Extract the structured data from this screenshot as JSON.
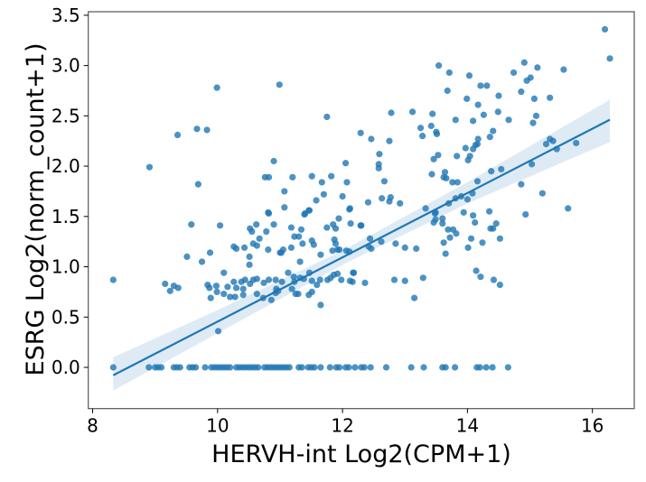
{
  "chart_data": {
    "type": "scatter",
    "xlabel": "HERVH-int Log2(CPM+1)",
    "ylabel": "ESRG Log2(norm_count+1)",
    "xlim": [
      7.93,
      16.67
    ],
    "ylim": [
      -0.41,
      3.535
    ],
    "xticks": [
      8,
      10,
      12,
      14,
      16
    ],
    "yticks": [
      "0.0",
      "0.5",
      "1.0",
      "1.5",
      "2.0",
      "2.5",
      "3.0",
      "3.5"
    ],
    "grid": false,
    "colors": {
      "points": "#1f77b4",
      "line": "#1f77b4",
      "ci_band": "#1f77b4"
    },
    "regression": {
      "x": [
        8.33,
        16.28
      ],
      "intercept": -2.74,
      "slope": 0.3195
    },
    "ci_band": {
      "x": [
        8.33,
        10,
        12,
        14,
        16.28
      ],
      "lower": [
        -0.23,
        0.34,
        1.02,
        1.63,
        2.24
      ],
      "upper": [
        0.1,
        0.57,
        1.16,
        1.84,
        2.66
      ]
    },
    "zero_points_x": [
      8.33,
      8.9,
      9.0,
      9.05,
      9.1,
      9.3,
      9.35,
      9.4,
      9.55,
      9.6,
      9.65,
      9.8,
      9.9,
      9.95,
      10.0,
      10.05,
      10.1,
      10.15,
      10.2,
      10.3,
      10.35,
      10.4,
      10.45,
      10.5,
      10.55,
      10.6,
      10.65,
      10.75,
      10.8,
      10.85,
      10.9,
      10.95,
      11.0,
      11.05,
      11.1,
      11.15,
      11.3,
      11.35,
      11.45,
      11.5,
      11.55,
      11.65,
      11.8,
      11.9,
      11.95,
      12.05,
      12.1,
      12.2,
      12.3,
      12.35,
      12.45,
      12.7,
      13.1,
      13.3,
      13.6,
      13.65,
      13.8,
      14.15,
      14.2,
      14.3,
      14.4,
      14.65
    ],
    "points": [
      [
        8.91,
        1.99
      ],
      [
        9.36,
        2.31
      ],
      [
        9.67,
        2.37
      ],
      [
        9.83,
        2.36
      ],
      [
        9.99,
        2.78
      ],
      [
        10.99,
        2.81
      ],
      [
        11.75,
        2.49
      ],
      [
        9.69,
        1.82
      ],
      [
        10.9,
        2.05
      ],
      [
        10.76,
        1.89
      ],
      [
        10.82,
        1.89
      ],
      [
        11.2,
        1.89
      ],
      [
        11.51,
        1.9
      ],
      [
        11.82,
        1.9
      ],
      [
        12.05,
        2.03
      ],
      [
        11.67,
        1.84
      ],
      [
        12.07,
        1.84
      ],
      [
        11.07,
        1.75
      ],
      [
        11.7,
        1.72
      ],
      [
        11.58,
        1.66
      ],
      [
        12.0,
        1.7
      ],
      [
        11.07,
        1.59
      ],
      [
        12.12,
        1.58
      ],
      [
        10.81,
        1.54
      ],
      [
        11.39,
        1.52
      ],
      [
        11.47,
        1.56
      ],
      [
        12.29,
        2.33
      ],
      [
        16.2,
        3.36
      ],
      [
        16.28,
        3.07
      ],
      [
        13.54,
        3.0
      ],
      [
        13.71,
        2.93
      ],
      [
        14.03,
        2.9
      ],
      [
        14.91,
        3.03
      ],
      [
        15.12,
        2.98
      ],
      [
        15.54,
        2.96
      ],
      [
        14.74,
        2.93
      ],
      [
        14.95,
        2.85
      ],
      [
        15.01,
        2.88
      ],
      [
        14.21,
        2.8
      ],
      [
        14.31,
        2.8
      ],
      [
        13.68,
        2.75
      ],
      [
        14.5,
        2.7
      ],
      [
        13.99,
        2.67
      ],
      [
        14.86,
        2.74
      ],
      [
        15.07,
        2.67
      ],
      [
        15.32,
        2.68
      ],
      [
        14.17,
        2.61
      ],
      [
        12.78,
        2.53
      ],
      [
        13.12,
        2.54
      ],
      [
        13.44,
        2.52
      ],
      [
        14.26,
        2.51
      ],
      [
        14.49,
        2.54
      ],
      [
        13.81,
        2.46
      ],
      [
        14.09,
        2.45
      ],
      [
        14.66,
        2.46
      ],
      [
        15.1,
        2.5
      ],
      [
        15.05,
        2.43
      ],
      [
        12.46,
        2.27
      ],
      [
        12.75,
        2.25
      ],
      [
        13.25,
        2.38
      ],
      [
        13.28,
        2.3
      ],
      [
        13.42,
        2.4
      ],
      [
        13.5,
        2.34
      ],
      [
        13.51,
        2.32
      ],
      [
        14.41,
        2.35
      ],
      [
        14.36,
        2.29
      ],
      [
        14.17,
        2.27
      ],
      [
        14.16,
        2.22
      ],
      [
        13.97,
        2.18
      ],
      [
        14.09,
        2.17
      ],
      [
        14.13,
        2.21
      ],
      [
        15.26,
        2.22
      ],
      [
        15.32,
        2.27
      ],
      [
        15.37,
        2.25
      ],
      [
        15.43,
        2.17
      ],
      [
        15.74,
        2.23
      ],
      [
        12.59,
        2.12
      ],
      [
        12.58,
        2.02
      ],
      [
        12.58,
        1.98
      ],
      [
        13.53,
        2.11
      ],
      [
        13.46,
        2.07
      ],
      [
        13.83,
        2.1
      ],
      [
        14.04,
        2.1
      ],
      [
        14.01,
        2.06
      ],
      [
        15.03,
        2.02
      ],
      [
        12.67,
        1.85
      ],
      [
        13.43,
        1.92
      ],
      [
        13.64,
        1.94
      ],
      [
        13.62,
        1.89
      ],
      [
        13.66,
        1.88
      ],
      [
        13.76,
        1.84
      ],
      [
        13.84,
        1.84
      ],
      [
        14.16,
        1.85
      ],
      [
        14.38,
        1.95
      ],
      [
        14.54,
        1.97
      ],
      [
        14.86,
        1.82
      ],
      [
        15.2,
        1.73
      ],
      [
        15.61,
        1.58
      ],
      [
        12.63,
        1.68
      ],
      [
        12.77,
        1.69
      ],
      [
        12.75,
        1.65
      ],
      [
        12.92,
        1.63
      ],
      [
        12.41,
        1.64
      ],
      [
        13.33,
        1.58
      ],
      [
        13.49,
        1.54
      ],
      [
        13.7,
        1.63
      ],
      [
        13.81,
        1.68
      ],
      [
        13.9,
        1.7
      ],
      [
        14.0,
        1.67
      ],
      [
        14.08,
        1.73
      ],
      [
        13.94,
        1.54
      ],
      [
        14.09,
        1.51
      ],
      [
        14.35,
        1.55
      ],
      [
        14.93,
        1.52
      ],
      [
        12.3,
        1.41
      ],
      [
        12.44,
        1.28
      ],
      [
        12.42,
        1.2
      ],
      [
        12.46,
        1.18
      ],
      [
        12.62,
        1.25
      ],
      [
        12.85,
        1.23
      ],
      [
        13.0,
        1.19
      ],
      [
        13.18,
        1.18
      ],
      [
        13.46,
        1.44
      ],
      [
        13.49,
        1.47
      ],
      [
        13.6,
        1.43
      ],
      [
        13.6,
        1.48
      ],
      [
        13.48,
        1.53
      ],
      [
        13.69,
        1.37
      ],
      [
        13.77,
        1.37
      ],
      [
        13.82,
        1.33
      ],
      [
        13.72,
        1.29
      ],
      [
        13.62,
        1.24
      ],
      [
        13.65,
        1.13
      ],
      [
        14.12,
        1.44
      ],
      [
        14.06,
        1.28
      ],
      [
        14.01,
        1.19
      ],
      [
        14.24,
        1.24
      ],
      [
        14.37,
        1.38
      ],
      [
        14.41,
        1.38
      ],
      [
        14.46,
        1.43
      ],
      [
        14.52,
        1.28
      ],
      [
        12.18,
        0.94
      ],
      [
        12.16,
        0.85
      ],
      [
        12.36,
        0.84
      ],
      [
        12.83,
        0.87
      ],
      [
        13.0,
        0.86
      ],
      [
        13.29,
        0.89
      ],
      [
        13.15,
        0.69
      ],
      [
        14.14,
        0.96
      ],
      [
        14.21,
        0.9
      ],
      [
        14.42,
        0.87
      ],
      [
        14.52,
        0.82
      ],
      [
        8.33,
        0.87
      ],
      [
        9.16,
        0.83
      ],
      [
        9.24,
        0.76
      ],
      [
        9.3,
        0.81
      ],
      [
        9.37,
        0.79
      ],
      [
        9.51,
        1.1
      ],
      [
        9.58,
        1.42
      ],
      [
        9.75,
        1.05
      ],
      [
        9.88,
        1.14
      ],
      [
        9.84,
        0.82
      ],
      [
        9.87,
        0.79
      ],
      [
        9.89,
        0.69
      ],
      [
        9.98,
        0.81
      ],
      [
        9.99,
        0.75
      ],
      [
        10.04,
        1.41
      ],
      [
        10.01,
        0.36
      ],
      [
        10.1,
        0.94
      ],
      [
        10.16,
        0.8
      ],
      [
        10.1,
        0.73
      ],
      [
        10.2,
        0.7
      ],
      [
        10.26,
        0.85
      ],
      [
        10.28,
        0.7
      ],
      [
        10.3,
        0.79
      ],
      [
        10.38,
        0.85
      ],
      [
        10.41,
        0.78
      ],
      [
        10.41,
        0.72
      ],
      [
        10.44,
        0.87
      ],
      [
        10.26,
        1.2
      ],
      [
        10.3,
        1.18
      ],
      [
        10.43,
        1.19
      ],
      [
        10.51,
        1.1
      ],
      [
        10.51,
        1.02
      ],
      [
        10.52,
        1.38
      ],
      [
        10.55,
        1.35
      ],
      [
        10.57,
        1.23
      ],
      [
        10.63,
        1.21
      ],
      [
        10.62,
        1.42
      ],
      [
        10.67,
        1.28
      ],
      [
        10.52,
        0.83
      ],
      [
        10.57,
        0.87
      ],
      [
        10.63,
        0.88
      ],
      [
        10.63,
        0.73
      ],
      [
        10.73,
        0.69
      ],
      [
        10.74,
        0.84
      ],
      [
        10.82,
        0.87
      ],
      [
        10.86,
        0.67
      ],
      [
        10.93,
        0.87
      ],
      [
        10.94,
        0.78
      ],
      [
        10.93,
        0.74
      ],
      [
        10.97,
        0.76
      ],
      [
        10.78,
        1.35
      ],
      [
        10.82,
        1.53
      ],
      [
        10.81,
        1.17
      ],
      [
        10.9,
        1.42
      ],
      [
        11.0,
        1.14
      ],
      [
        11.02,
        1.14
      ],
      [
        11.05,
        1.17
      ],
      [
        11.03,
        0.85
      ],
      [
        11.13,
        0.94
      ],
      [
        11.18,
        1.19
      ],
      [
        11.22,
        0.9
      ],
      [
        11.23,
        0.85
      ],
      [
        11.25,
        0.73
      ],
      [
        11.19,
        0.78
      ],
      [
        11.18,
        1.39
      ],
      [
        11.23,
        1.3
      ],
      [
        11.3,
        1.3
      ],
      [
        11.34,
        1.37
      ],
      [
        11.36,
        1.23
      ],
      [
        11.32,
        1.05
      ],
      [
        11.4,
        1.53
      ],
      [
        11.46,
        1.56
      ],
      [
        11.51,
        1.26
      ],
      [
        11.54,
        1.22
      ],
      [
        11.29,
        0.73
      ],
      [
        11.32,
        0.89
      ],
      [
        11.38,
        0.88
      ],
      [
        11.47,
        0.94
      ],
      [
        11.51,
        0.86
      ],
      [
        11.46,
        0.72
      ],
      [
        11.51,
        0.75
      ],
      [
        11.59,
        0.82
      ],
      [
        11.64,
        0.87
      ],
      [
        11.65,
        0.62
      ],
      [
        11.65,
        1.12
      ],
      [
        11.75,
        1.39
      ],
      [
        11.85,
        1.42
      ],
      [
        11.89,
        1.38
      ],
      [
        11.94,
        1.48
      ],
      [
        11.87,
        1.27
      ],
      [
        11.89,
        1.23
      ],
      [
        11.84,
        1.16
      ],
      [
        11.92,
        1.17
      ],
      [
        11.95,
        1.17
      ],
      [
        11.76,
        0.87
      ],
      [
        11.81,
        0.89
      ],
      [
        11.86,
        0.92
      ],
      [
        11.92,
        0.93
      ],
      [
        11.98,
        0.87
      ],
      [
        12.06,
        1.16
      ],
      [
        12.11,
        1.15
      ],
      [
        12.12,
        0.86
      ],
      [
        12.17,
        0.94
      ],
      [
        12.13,
        1.43
      ],
      [
        12.11,
        1.57
      ],
      [
        12.29,
        1.41
      ]
    ]
  }
}
